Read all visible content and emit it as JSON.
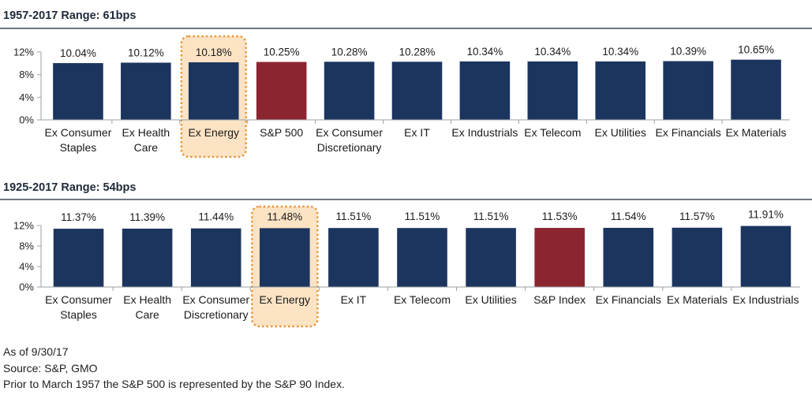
{
  "chart_data": [
    {
      "type": "bar",
      "title": "1957-2017 Range: 61bps",
      "categories": [
        "Ex Consumer\nStaples",
        "Ex Health\nCare",
        "Ex Energy",
        "S&P 500",
        "Ex Consumer\nDiscretionary",
        "Ex IT",
        "Ex Industrials",
        "Ex Telecom",
        "Ex Utilities",
        "Ex Financials",
        "Ex Materials"
      ],
      "values": [
        10.04,
        10.12,
        10.18,
        10.25,
        10.28,
        10.28,
        10.34,
        10.34,
        10.34,
        10.39,
        10.65
      ],
      "data_labels": [
        "10.04%",
        "10.12%",
        "10.18%",
        "10.25%",
        "10.28%",
        "10.28%",
        "10.34%",
        "10.34%",
        "10.34%",
        "10.39%",
        "10.65%"
      ],
      "y_ticks": [
        0,
        4,
        8,
        12
      ],
      "y_tick_labels": [
        "0%",
        "4%",
        "8%",
        "12%"
      ],
      "ylim": [
        0,
        12
      ],
      "highlight_index": 2,
      "index_bar": 3,
      "grid": false
    },
    {
      "type": "bar",
      "title": "1925-2017 Range: 54bps",
      "categories": [
        "Ex Consumer\nStaples",
        "Ex Health\nCare",
        "Ex Consumer\nDiscretionary",
        "Ex Energy",
        "Ex IT",
        "Ex Telecom",
        "Ex Utilities",
        "S&P Index",
        "Ex Financials",
        "Ex Materials",
        "Ex Industrials"
      ],
      "values": [
        11.37,
        11.39,
        11.44,
        11.48,
        11.51,
        11.51,
        11.51,
        11.53,
        11.54,
        11.57,
        11.91
      ],
      "data_labels": [
        "11.37%",
        "11.39%",
        "11.44%",
        "11.48%",
        "11.51%",
        "11.51%",
        "11.51%",
        "11.53%",
        "11.54%",
        "11.57%",
        "11.91%"
      ],
      "y_ticks": [
        0,
        4,
        8,
        12
      ],
      "y_tick_labels": [
        "0%",
        "4%",
        "8%",
        "12%"
      ],
      "ylim": [
        0,
        12
      ],
      "highlight_index": 3,
      "index_bar": 7,
      "grid": false
    }
  ],
  "colors": {
    "bar": "#1c355e",
    "index_bar": "#8b2630",
    "highlight_fill": "#fbe3c4",
    "highlight_border": "#e8973a",
    "axis": "#9aa0a6"
  },
  "notes": {
    "as_of": "As of 9/30/17",
    "source": "Source: S&P, GMO",
    "footnote": "Prior to March 1957 the S&P 500 is represented by the S&P 90 Index."
  }
}
